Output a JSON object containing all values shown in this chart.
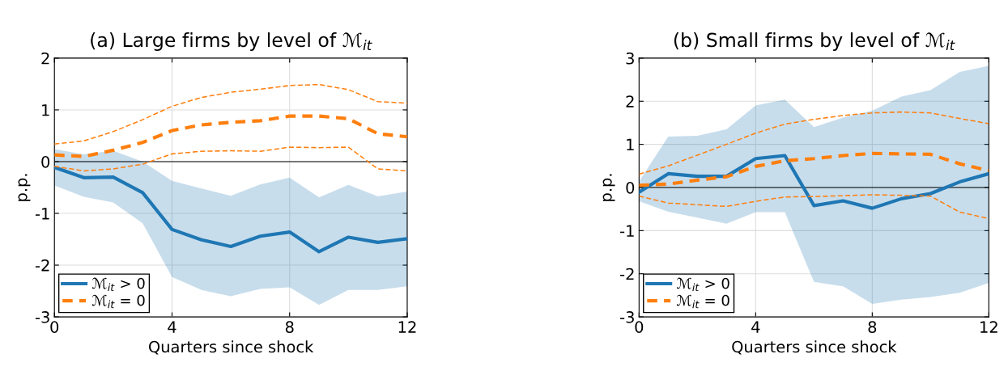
{
  "chart_data": [
    {
      "type": "line",
      "title": "(a) Large firms by level of ℳ$_{it}$",
      "xlabel": "Quarters since shock",
      "ylabel": "p.p.",
      "x": [
        0,
        1,
        2,
        3,
        4,
        5,
        6,
        7,
        8,
        9,
        10,
        11,
        12
      ],
      "xlim": [
        0,
        12
      ],
      "xticks": [
        0,
        4,
        8,
        12
      ],
      "ylim": [
        -3,
        2
      ],
      "yticks": [
        -3,
        -2,
        -1,
        0,
        1,
        2
      ],
      "grid": true,
      "legend": "bottom left",
      "ref_lines": [
        {
          "axis": "y",
          "value": 0,
          "color": "#000000",
          "line_style": "solid"
        }
      ],
      "series": [
        {
          "name": "ℳ$_{it}$ > 0",
          "color": "#1f77b4",
          "line_style": "solid",
          "values": [
            -0.11,
            -0.31,
            -0.3,
            -0.6,
            -1.31,
            -1.51,
            -1.64,
            -1.44,
            -1.36,
            -1.74,
            -1.46,
            -1.56,
            -1.49
          ],
          "lower": [
            -0.46,
            -0.68,
            -0.79,
            -1.19,
            -2.23,
            -2.48,
            -2.6,
            -2.46,
            -2.43,
            -2.77,
            -2.48,
            -2.48,
            -2.41
          ],
          "upper": [
            0.24,
            0.14,
            0.21,
            0.0,
            -0.37,
            -0.52,
            -0.66,
            -0.44,
            -0.31,
            -0.69,
            -0.45,
            -0.67,
            -0.58
          ]
        },
        {
          "name": "ℳ$_{it}$ = 0",
          "color": "#ff7f0e",
          "line_style": "dashed",
          "values": [
            0.13,
            0.1,
            0.22,
            0.37,
            0.6,
            0.71,
            0.76,
            0.79,
            0.88,
            0.88,
            0.83,
            0.54,
            0.48
          ]
        },
        {
          "color": "#ff7f0e",
          "line_style": "dashed",
          "values": [
            0.34,
            0.4,
            0.58,
            0.81,
            1.07,
            1.24,
            1.34,
            1.4,
            1.47,
            1.49,
            1.39,
            1.16,
            1.13
          ]
        },
        {
          "color": "#ff7f0e",
          "line_style": "dashed",
          "values": [
            -0.09,
            -0.18,
            -0.14,
            -0.05,
            0.15,
            0.2,
            0.21,
            0.2,
            0.28,
            0.27,
            0.28,
            -0.14,
            -0.18
          ]
        }
      ]
    },
    {
      "type": "line",
      "title": "(b) Small firms by level of ℳ$_{it}$",
      "xlabel": "Quarters since shock",
      "ylabel": "p.p.",
      "x": [
        0,
        1,
        2,
        3,
        4,
        5,
        6,
        7,
        8,
        9,
        10,
        11,
        12
      ],
      "xlim": [
        0,
        12
      ],
      "xticks": [
        0,
        4,
        8,
        12
      ],
      "ylim": [
        -3,
        3
      ],
      "yticks": [
        -3,
        -2,
        -1,
        0,
        1,
        2,
        3
      ],
      "grid": true,
      "legend": "bottom left",
      "ref_lines": [
        {
          "axis": "y",
          "value": 0,
          "color": "#000000",
          "line_style": "solid"
        }
      ],
      "series": [
        {
          "name": "ℳ$_{it}$ > 0",
          "color": "#1f77b4",
          "line_style": "solid",
          "values": [
            -0.11,
            0.32,
            0.26,
            0.26,
            0.67,
            0.74,
            -0.42,
            -0.31,
            -0.48,
            -0.26,
            -0.14,
            0.13,
            0.32
          ],
          "lower": [
            -0.32,
            -0.56,
            -0.7,
            -0.84,
            -0.57,
            -0.57,
            -2.19,
            -2.29,
            -2.7,
            -2.6,
            -2.54,
            -2.44,
            -2.21
          ],
          "upper": [
            0.14,
            1.18,
            1.2,
            1.35,
            1.9,
            2.04,
            1.4,
            1.62,
            1.78,
            2.11,
            2.26,
            2.68,
            2.82
          ]
        },
        {
          "name": "ℳ$_{it}$ = 0",
          "color": "#ff7f0e",
          "line_style": "dashed",
          "values": [
            0.05,
            0.08,
            0.17,
            0.25,
            0.49,
            0.62,
            0.67,
            0.74,
            0.79,
            0.78,
            0.77,
            0.55,
            0.39
          ]
        },
        {
          "color": "#ff7f0e",
          "line_style": "dashed",
          "values": [
            0.31,
            0.5,
            0.75,
            1.0,
            1.26,
            1.47,
            1.58,
            1.67,
            1.73,
            1.75,
            1.73,
            1.6,
            1.48
          ]
        },
        {
          "color": "#ff7f0e",
          "line_style": "dashed",
          "values": [
            -0.2,
            -0.36,
            -0.4,
            -0.44,
            -0.32,
            -0.22,
            -0.21,
            -0.19,
            -0.17,
            -0.18,
            -0.2,
            -0.57,
            -0.72
          ]
        }
      ]
    }
  ]
}
